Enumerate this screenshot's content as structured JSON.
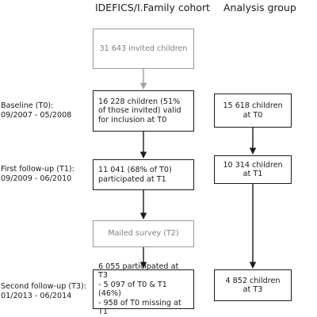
{
  "headers": {
    "left": "IDEFICS/I.Family cohort",
    "right": "Analysis group"
  },
  "stages": [
    {
      "name": "Baseline (T0):",
      "dates": "09/2007 - 05/2008"
    },
    {
      "name": "First follow-up (T1):",
      "dates": "09/2009 - 06/2010"
    },
    {
      "name": "Second follow-up (T3):",
      "dates": "01/2013 - 06/2014"
    }
  ],
  "cohort": {
    "invited": "31 643 invited children",
    "baseline": [
      "16 228 children (51%",
      "of those invited) valid",
      "for inclusion at T0"
    ],
    "t1": [
      "11 041 (68% of T0)",
      "participated at T1"
    ],
    "mailed": "Mailed survey (T2)",
    "t3": [
      "6 055 participated at T3",
      "- 5 097 of T0 & T1 (46%)",
      "- 958 of T0 missing at T1"
    ]
  },
  "analysis": {
    "t0": [
      "15 618 children",
      "at T0"
    ],
    "t1": [
      "10 314 children",
      "at T1"
    ],
    "t3": [
      "4 852 children",
      "at T3"
    ]
  },
  "colors": {
    "dark_border": "#1a1a1a",
    "grey_border": "#9a9a9a",
    "grey_arrow": "#a0a0a0"
  }
}
